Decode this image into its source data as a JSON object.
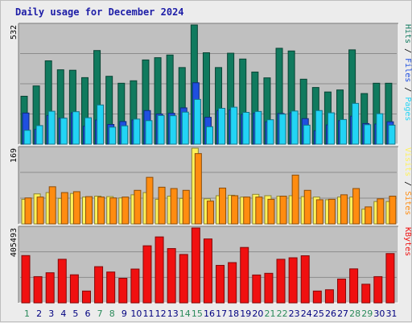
{
  "title": "Daily usage for December 2024",
  "colors": {
    "title": "#1d1da7",
    "panel_bg": "#c0c0c0",
    "grid": "#8c8c8c",
    "hits": "#107a5e",
    "files": "#1f4fe0",
    "pages": "#22d4f5",
    "visits": "#fff25a",
    "sites": "#ff8c10",
    "kbytes": "#f01010",
    "day_normal": "#000080",
    "day_weekend": "#2a8a5a"
  },
  "chart_data": [
    {
      "type": "bar",
      "name": "requests",
      "ymax_label": "532",
      "ylim": [
        0,
        532
      ],
      "legend": [
        "Hits",
        "Files",
        "Pages"
      ],
      "categories": [
        "1",
        "2",
        "3",
        "4",
        "5",
        "6",
        "7",
        "8",
        "9",
        "10",
        "11",
        "12",
        "13",
        "14",
        "15",
        "16",
        "17",
        "18",
        "19",
        "20",
        "21",
        "22",
        "23",
        "24",
        "25",
        "26",
        "27",
        "28",
        "29",
        "30",
        "31"
      ],
      "series": [
        {
          "name": "Hits",
          "values": [
            214,
            260,
            372,
            332,
            330,
            297,
            418,
            303,
            272,
            283,
            376,
            386,
            398,
            342,
            532,
            408,
            342,
            406,
            380,
            322,
            296,
            428,
            416,
            290,
            253,
            233,
            242,
            421,
            226,
            272,
            272
          ]
        },
        {
          "name": "Files",
          "values": [
            139,
            66,
            128,
            116,
            140,
            80,
            108,
            88,
            101,
            108,
            150,
            135,
            138,
            162,
            274,
            120,
            150,
            153,
            133,
            139,
            100,
            137,
            140,
            114,
            60,
            86,
            105,
            125,
            92,
            90,
            100
          ]
        },
        {
          "name": "Pages",
          "values": [
            62,
            83,
            147,
            116,
            145,
            118,
            175,
            76,
            82,
            112,
            105,
            128,
            127,
            143,
            200,
            78,
            160,
            165,
            142,
            146,
            109,
            134,
            148,
            85,
            150,
            140,
            110,
            182,
            87,
            136,
            85
          ]
        }
      ]
    },
    {
      "type": "bar",
      "name": "visits",
      "ymax_label": "169",
      "ylim": [
        0,
        169
      ],
      "legend": [
        "Visits",
        "Sites"
      ],
      "series": [
        {
          "name": "Visits",
          "values": [
            55,
            67,
            70,
            57,
            68,
            60,
            62,
            61,
            58,
            65,
            70,
            55,
            62,
            57,
            169,
            56,
            63,
            64,
            60,
            66,
            63,
            62,
            63,
            61,
            60,
            54,
            60,
            60,
            33,
            50,
            50
          ]
        },
        {
          "name": "Sites",
          "values": [
            58,
            60,
            83,
            70,
            72,
            61,
            60,
            58,
            60,
            75,
            104,
            82,
            79,
            75,
            157,
            51,
            80,
            63,
            60,
            60,
            55,
            62,
            109,
            75,
            54,
            55,
            65,
            79,
            38,
            56,
            62
          ]
        }
      ]
    },
    {
      "type": "bar",
      "name": "kbytes",
      "ymax_label": "405493",
      "ylim": [
        0,
        405493
      ],
      "legend": [
        "KBytes"
      ],
      "series": [
        {
          "name": "KBytes",
          "values": [
            256000,
            142000,
            163000,
            236000,
            152000,
            64000,
            196000,
            167000,
            133000,
            183000,
            309000,
            357000,
            294000,
            262000,
            405493,
            346000,
            203000,
            218000,
            300000,
            151000,
            160000,
            236000,
            244000,
            255000,
            64000,
            71000,
            129000,
            184000,
            101000,
            142000,
            267000
          ]
        }
      ]
    }
  ]
}
